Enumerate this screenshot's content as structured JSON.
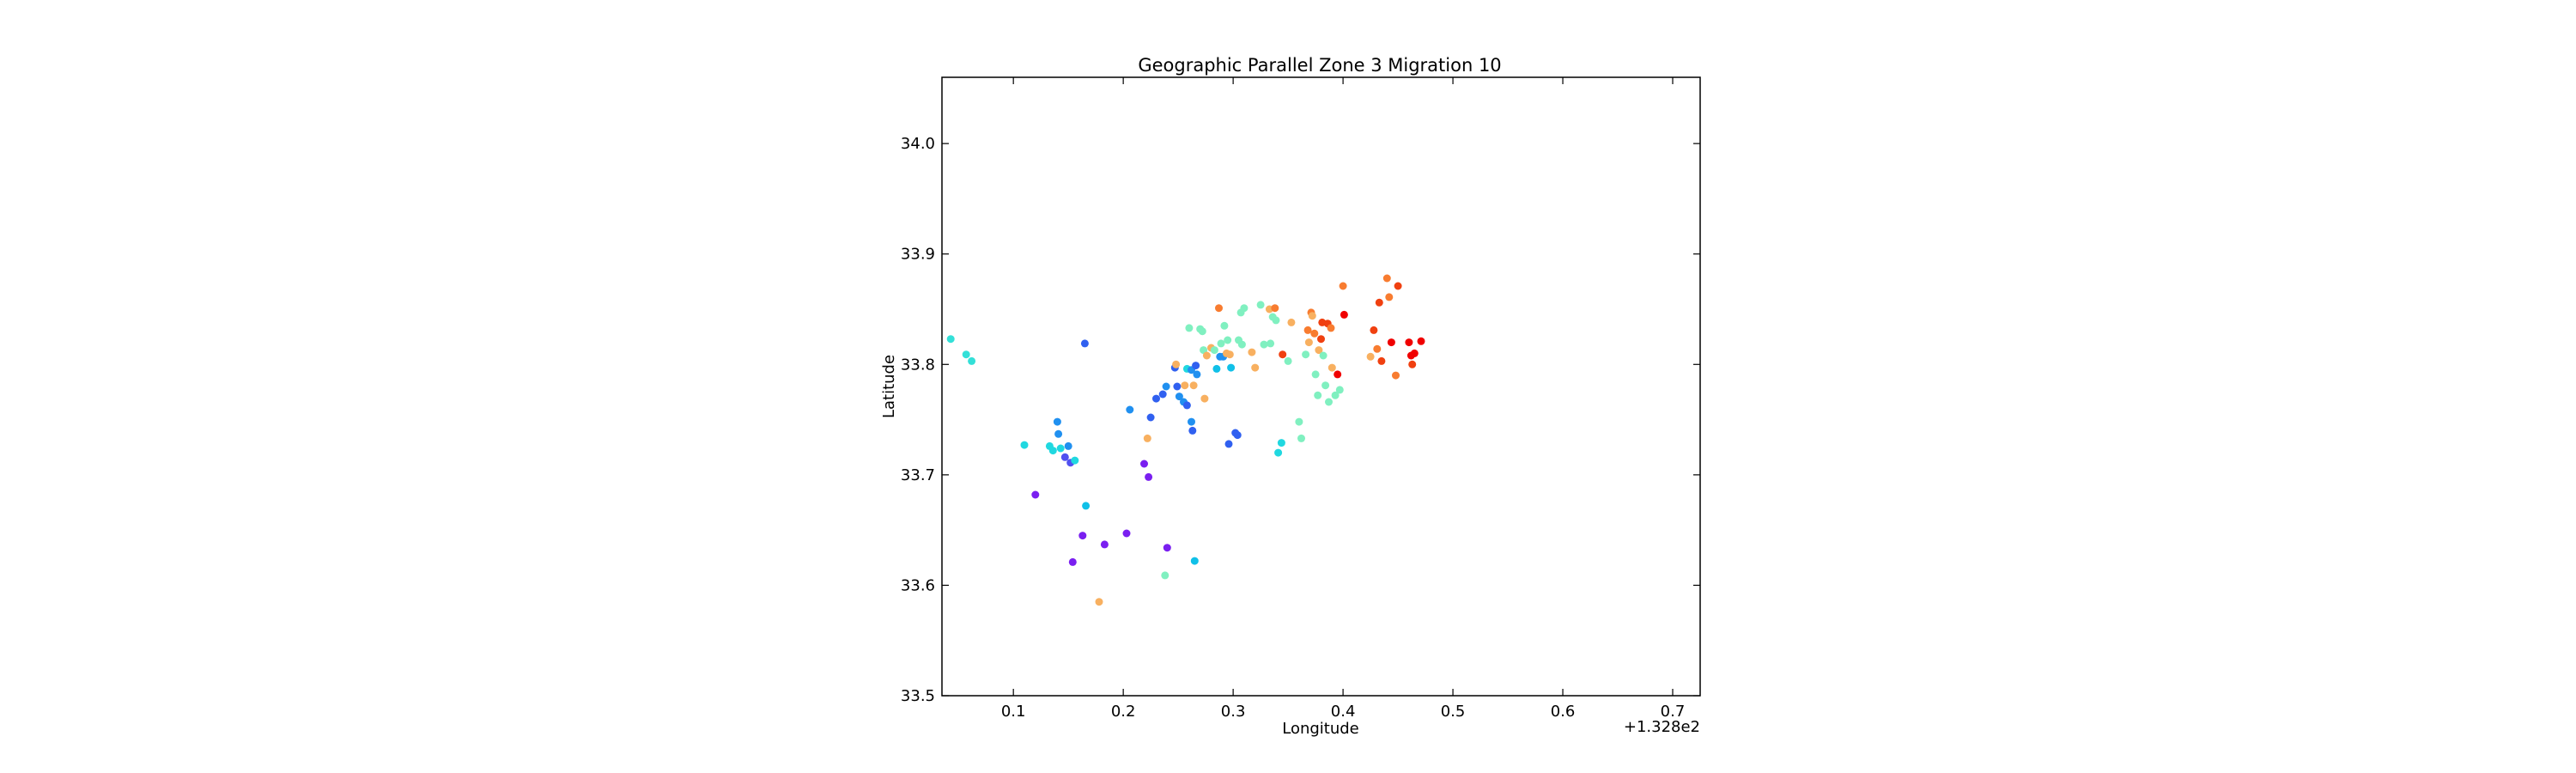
{
  "chart_data": {
    "type": "scatter",
    "title": "Geographic Parallel Zone 3 Migration 10",
    "xlabel": "Longitude",
    "ylabel": "Latitude",
    "x_offset_label": "+1.328e2",
    "xlim": [
      0.035,
      0.725
    ],
    "ylim": [
      33.5,
      34.06
    ],
    "x_ticks": [
      "0.1",
      "0.2",
      "0.3",
      "0.4",
      "0.5",
      "0.6",
      "0.7"
    ],
    "y_ticks": [
      "33.5",
      "33.6",
      "33.7",
      "33.8",
      "33.9",
      "34.0"
    ],
    "grid": false,
    "points": [
      {
        "x": 0.043,
        "y": 33.823,
        "color": "#33e0d8"
      },
      {
        "x": 0.057,
        "y": 33.809,
        "color": "#33e0d8"
      },
      {
        "x": 0.062,
        "y": 33.803,
        "color": "#33e0d8"
      },
      {
        "x": 0.11,
        "y": 33.727,
        "color": "#20d8e0"
      },
      {
        "x": 0.12,
        "y": 33.682,
        "color": "#7a1ff0"
      },
      {
        "x": 0.133,
        "y": 33.726,
        "color": "#20d8e0"
      },
      {
        "x": 0.136,
        "y": 33.722,
        "color": "#20d8e0"
      },
      {
        "x": 0.14,
        "y": 33.748,
        "color": "#2090f0"
      },
      {
        "x": 0.141,
        "y": 33.737,
        "color": "#2090f0"
      },
      {
        "x": 0.143,
        "y": 33.724,
        "color": "#20d8e0"
      },
      {
        "x": 0.147,
        "y": 33.716,
        "color": "#5050f0"
      },
      {
        "x": 0.15,
        "y": 33.726,
        "color": "#2090f0"
      },
      {
        "x": 0.152,
        "y": 33.711,
        "color": "#5050f0"
      },
      {
        "x": 0.156,
        "y": 33.713,
        "color": "#20d8e0"
      },
      {
        "x": 0.154,
        "y": 33.621,
        "color": "#7a1ff0"
      },
      {
        "x": 0.163,
        "y": 33.645,
        "color": "#7a1ff0"
      },
      {
        "x": 0.166,
        "y": 33.672,
        "color": "#10c0e8"
      },
      {
        "x": 0.165,
        "y": 33.819,
        "color": "#3060f0"
      },
      {
        "x": 0.178,
        "y": 33.585,
        "color": "#f8b060"
      },
      {
        "x": 0.183,
        "y": 33.637,
        "color": "#7a1ff0"
      },
      {
        "x": 0.203,
        "y": 33.647,
        "color": "#7a1ff0"
      },
      {
        "x": 0.206,
        "y": 33.759,
        "color": "#2090f0"
      },
      {
        "x": 0.219,
        "y": 33.71,
        "color": "#7a1ff0"
      },
      {
        "x": 0.222,
        "y": 33.733,
        "color": "#f8b060"
      },
      {
        "x": 0.223,
        "y": 33.698,
        "color": "#7a1ff0"
      },
      {
        "x": 0.225,
        "y": 33.752,
        "color": "#3060f0"
      },
      {
        "x": 0.23,
        "y": 33.769,
        "color": "#3060f0"
      },
      {
        "x": 0.236,
        "y": 33.773,
        "color": "#3060f0"
      },
      {
        "x": 0.239,
        "y": 33.78,
        "color": "#2090f0"
      },
      {
        "x": 0.238,
        "y": 33.609,
        "color": "#80f0c0"
      },
      {
        "x": 0.24,
        "y": 33.634,
        "color": "#7a1ff0"
      },
      {
        "x": 0.247,
        "y": 33.797,
        "color": "#3060f0"
      },
      {
        "x": 0.248,
        "y": 33.8,
        "color": "#f8b060"
      },
      {
        "x": 0.249,
        "y": 33.78,
        "color": "#3060f0"
      },
      {
        "x": 0.251,
        "y": 33.771,
        "color": "#2090f0"
      },
      {
        "x": 0.255,
        "y": 33.766,
        "color": "#2090f0"
      },
      {
        "x": 0.256,
        "y": 33.781,
        "color": "#f8b060"
      },
      {
        "x": 0.258,
        "y": 33.796,
        "color": "#20d8e0"
      },
      {
        "x": 0.258,
        "y": 33.763,
        "color": "#3060f0"
      },
      {
        "x": 0.26,
        "y": 33.833,
        "color": "#80f0c0"
      },
      {
        "x": 0.262,
        "y": 33.795,
        "color": "#2090f0"
      },
      {
        "x": 0.262,
        "y": 33.748,
        "color": "#2090f0"
      },
      {
        "x": 0.263,
        "y": 33.74,
        "color": "#3060f0"
      },
      {
        "x": 0.264,
        "y": 33.781,
        "color": "#f8b060"
      },
      {
        "x": 0.265,
        "y": 33.622,
        "color": "#10c0e8"
      },
      {
        "x": 0.266,
        "y": 33.799,
        "color": "#3060f0"
      },
      {
        "x": 0.267,
        "y": 33.791,
        "color": "#2090f0"
      },
      {
        "x": 0.27,
        "y": 33.832,
        "color": "#80f0c0"
      },
      {
        "x": 0.272,
        "y": 33.83,
        "color": "#80f0c0"
      },
      {
        "x": 0.273,
        "y": 33.813,
        "color": "#80f0c0"
      },
      {
        "x": 0.274,
        "y": 33.769,
        "color": "#f8b060"
      },
      {
        "x": 0.276,
        "y": 33.808,
        "color": "#f8b060"
      },
      {
        "x": 0.28,
        "y": 33.815,
        "color": "#f8b060"
      },
      {
        "x": 0.283,
        "y": 33.813,
        "color": "#80f0c0"
      },
      {
        "x": 0.285,
        "y": 33.796,
        "color": "#10c0e8"
      },
      {
        "x": 0.287,
        "y": 33.851,
        "color": "#f87c30"
      },
      {
        "x": 0.288,
        "y": 33.807,
        "color": "#2090f0"
      },
      {
        "x": 0.289,
        "y": 33.819,
        "color": "#80f0c0"
      },
      {
        "x": 0.291,
        "y": 33.807,
        "color": "#2090f0"
      },
      {
        "x": 0.292,
        "y": 33.835,
        "color": "#80f0c0"
      },
      {
        "x": 0.294,
        "y": 33.81,
        "color": "#f8b060"
      },
      {
        "x": 0.295,
        "y": 33.822,
        "color": "#80f0c0"
      },
      {
        "x": 0.296,
        "y": 33.728,
        "color": "#3060f0"
      },
      {
        "x": 0.297,
        "y": 33.809,
        "color": "#f8b060"
      },
      {
        "x": 0.298,
        "y": 33.797,
        "color": "#10c0e8"
      },
      {
        "x": 0.302,
        "y": 33.738,
        "color": "#3060f0"
      },
      {
        "x": 0.304,
        "y": 33.736,
        "color": "#3060f0"
      },
      {
        "x": 0.305,
        "y": 33.822,
        "color": "#80f0c0"
      },
      {
        "x": 0.307,
        "y": 33.847,
        "color": "#80f0c0"
      },
      {
        "x": 0.308,
        "y": 33.818,
        "color": "#80f0c0"
      },
      {
        "x": 0.31,
        "y": 33.851,
        "color": "#80f0c0"
      },
      {
        "x": 0.317,
        "y": 33.811,
        "color": "#f8b060"
      },
      {
        "x": 0.32,
        "y": 33.797,
        "color": "#f8b060"
      },
      {
        "x": 0.325,
        "y": 33.854,
        "color": "#80f0c0"
      },
      {
        "x": 0.328,
        "y": 33.818,
        "color": "#80f0c0"
      },
      {
        "x": 0.333,
        "y": 33.85,
        "color": "#f8b060"
      },
      {
        "x": 0.334,
        "y": 33.819,
        "color": "#80f0c0"
      },
      {
        "x": 0.336,
        "y": 33.843,
        "color": "#80f0c0"
      },
      {
        "x": 0.338,
        "y": 33.851,
        "color": "#f87c30"
      },
      {
        "x": 0.339,
        "y": 33.84,
        "color": "#80f0c0"
      },
      {
        "x": 0.341,
        "y": 33.72,
        "color": "#20d8e0"
      },
      {
        "x": 0.344,
        "y": 33.729,
        "color": "#20d8e0"
      },
      {
        "x": 0.345,
        "y": 33.809,
        "color": "#f04010"
      },
      {
        "x": 0.35,
        "y": 33.803,
        "color": "#80f0c0"
      },
      {
        "x": 0.353,
        "y": 33.838,
        "color": "#f8b060"
      },
      {
        "x": 0.36,
        "y": 33.748,
        "color": "#80f0c0"
      },
      {
        "x": 0.362,
        "y": 33.733,
        "color": "#80f0c0"
      },
      {
        "x": 0.366,
        "y": 33.809,
        "color": "#80f0c0"
      },
      {
        "x": 0.368,
        "y": 33.831,
        "color": "#f87c30"
      },
      {
        "x": 0.369,
        "y": 33.82,
        "color": "#f8b060"
      },
      {
        "x": 0.371,
        "y": 33.847,
        "color": "#f87c30"
      },
      {
        "x": 0.372,
        "y": 33.844,
        "color": "#f8b060"
      },
      {
        "x": 0.374,
        "y": 33.828,
        "color": "#f87c30"
      },
      {
        "x": 0.375,
        "y": 33.791,
        "color": "#80f0c0"
      },
      {
        "x": 0.377,
        "y": 33.772,
        "color": "#80f0c0"
      },
      {
        "x": 0.378,
        "y": 33.813,
        "color": "#f8b060"
      },
      {
        "x": 0.38,
        "y": 33.823,
        "color": "#f04010"
      },
      {
        "x": 0.381,
        "y": 33.838,
        "color": "#f04010"
      },
      {
        "x": 0.382,
        "y": 33.808,
        "color": "#80f0c0"
      },
      {
        "x": 0.384,
        "y": 33.781,
        "color": "#80f0c0"
      },
      {
        "x": 0.386,
        "y": 33.837,
        "color": "#f04010"
      },
      {
        "x": 0.387,
        "y": 33.766,
        "color": "#80f0c0"
      },
      {
        "x": 0.389,
        "y": 33.833,
        "color": "#f87c30"
      },
      {
        "x": 0.39,
        "y": 33.797,
        "color": "#f8b060"
      },
      {
        "x": 0.393,
        "y": 33.772,
        "color": "#80f0c0"
      },
      {
        "x": 0.395,
        "y": 33.791,
        "color": "#f00000"
      },
      {
        "x": 0.397,
        "y": 33.777,
        "color": "#80f0c0"
      },
      {
        "x": 0.4,
        "y": 33.871,
        "color": "#f87c30"
      },
      {
        "x": 0.401,
        "y": 33.845,
        "color": "#f00000"
      },
      {
        "x": 0.425,
        "y": 33.807,
        "color": "#f8b060"
      },
      {
        "x": 0.428,
        "y": 33.831,
        "color": "#f04010"
      },
      {
        "x": 0.431,
        "y": 33.814,
        "color": "#f87c30"
      },
      {
        "x": 0.433,
        "y": 33.856,
        "color": "#f04010"
      },
      {
        "x": 0.435,
        "y": 33.803,
        "color": "#f04010"
      },
      {
        "x": 0.44,
        "y": 33.878,
        "color": "#f87c30"
      },
      {
        "x": 0.442,
        "y": 33.861,
        "color": "#f87c30"
      },
      {
        "x": 0.444,
        "y": 33.82,
        "color": "#f00000"
      },
      {
        "x": 0.448,
        "y": 33.79,
        "color": "#f87c30"
      },
      {
        "x": 0.45,
        "y": 33.871,
        "color": "#f04010"
      },
      {
        "x": 0.46,
        "y": 33.82,
        "color": "#f00000"
      },
      {
        "x": 0.462,
        "y": 33.808,
        "color": "#f00000"
      },
      {
        "x": 0.463,
        "y": 33.8,
        "color": "#f04010"
      },
      {
        "x": 0.465,
        "y": 33.81,
        "color": "#f00000"
      },
      {
        "x": 0.471,
        "y": 33.821,
        "color": "#f00000"
      }
    ]
  }
}
